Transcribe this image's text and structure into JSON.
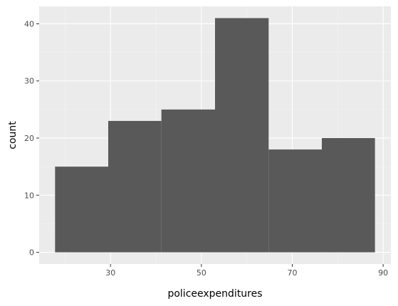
{
  "chart_data": {
    "type": "bar",
    "subtype": "histogram",
    "title": "",
    "xlabel": "policeexpenditures",
    "ylabel": "count",
    "bins": [
      {
        "x0": 17.8,
        "x1": 29.5,
        "count": 15
      },
      {
        "x0": 29.5,
        "x1": 41.2,
        "count": 23
      },
      {
        "x0": 41.2,
        "x1": 53.0,
        "count": 25
      },
      {
        "x0": 53.0,
        "x1": 64.8,
        "count": 41
      },
      {
        "x0": 64.8,
        "x1": 76.5,
        "count": 18
      },
      {
        "x0": 76.5,
        "x1": 88.2,
        "count": 20
      }
    ],
    "xlim": [
      14.3,
      91.7
    ],
    "ylim": [
      -2.05,
      43.05
    ],
    "x_ticks": [
      30,
      50,
      70,
      90
    ],
    "y_ticks": [
      0,
      10,
      20,
      30,
      40
    ],
    "x_minor_ticks": [
      20,
      40,
      60,
      80
    ],
    "y_minor_ticks": [
      5,
      15,
      25,
      35
    ],
    "grid": true,
    "legend": "none",
    "colors": {
      "bar": "#595959",
      "panel_background": "#ebebeb",
      "grid_major": "#ffffff",
      "grid_minor": "#f5f5f5",
      "tick_text": "#4d4d4d",
      "axis_title": "#000000"
    }
  }
}
